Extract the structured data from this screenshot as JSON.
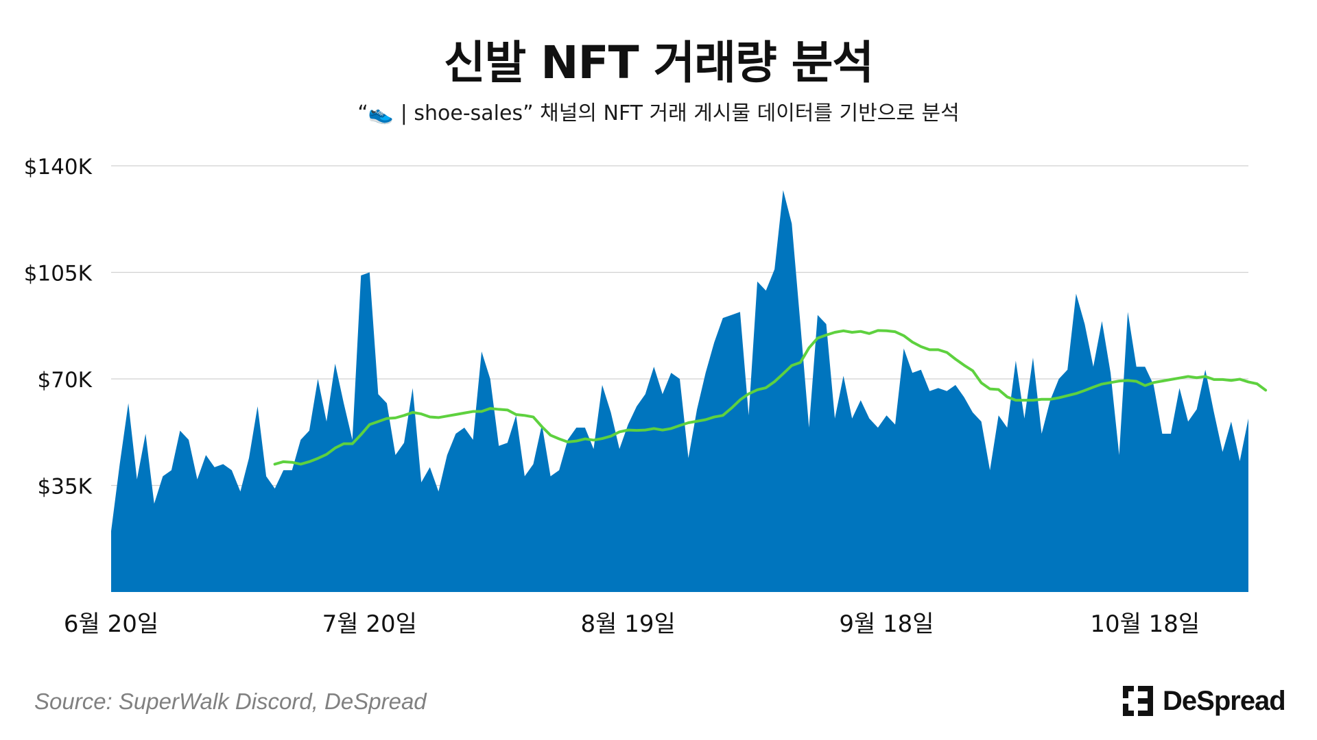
{
  "header": {
    "title": "신발 NFT 거래량 분석",
    "subtitle": "“👟 | shoe-sales” 채널의 NFT 거래 게시물 데이터를 기반으로 분석"
  },
  "footer": {
    "source": "Source: SuperWalk Discord, DeSpread",
    "brand": "DeSpread",
    "brand_icon": "despread-logo-icon"
  },
  "colors": {
    "area": "#0075BE",
    "moving_average": "#5ED13F",
    "gridline": "#D0D0D0"
  },
  "chart_data": {
    "type": "area",
    "title": "신발 NFT 거래량 분석",
    "subtitle": "“👟 | shoe-sales” 채널의 NFT 거래 게시물 데이터를 기반으로 분석",
    "x_start_date": "2022-06-20",
    "x_ticks": [
      {
        "day": 0,
        "label": "6월 20일"
      },
      {
        "day": 30,
        "label": "7월 20일"
      },
      {
        "day": 60,
        "label": "8월 19일"
      },
      {
        "day": 90,
        "label": "9월 18일"
      },
      {
        "day": 120,
        "label": "10월 18일"
      }
    ],
    "y_ticks": [
      {
        "value": 35000,
        "label": "$35K"
      },
      {
        "value": 70000,
        "label": "$70K"
      },
      {
        "value": 105000,
        "label": "$105K"
      },
      {
        "value": 140000,
        "label": "$140K"
      }
    ],
    "ylim": [
      0,
      140000
    ],
    "grid": true,
    "series": [
      {
        "type": "area",
        "values": [
          20000,
          42000,
          62000,
          37000,
          52000,
          29000,
          38000,
          40000,
          53000,
          50000,
          37000,
          45000,
          41000,
          42000,
          40000,
          33000,
          44000,
          61000,
          38000,
          34000,
          40000,
          40000,
          50000,
          53000,
          70000,
          56000,
          75000,
          62000,
          50000,
          104000,
          105000,
          65000,
          62000,
          45000,
          49000,
          67000,
          36000,
          41000,
          33000,
          45000,
          52000,
          54000,
          50000,
          79000,
          70000,
          48000,
          49000,
          58000,
          38000,
          42000,
          55000,
          38000,
          40000,
          50000,
          54000,
          54000,
          47000,
          68000,
          59000,
          47000,
          55000,
          61000,
          65000,
          74000,
          65000,
          72000,
          70000,
          44000,
          60000,
          72000,
          82000,
          90000,
          91000,
          92000,
          58000,
          102000,
          99000,
          106000,
          132000,
          121000,
          88000,
          54000,
          91000,
          88000,
          57000,
          71000,
          57000,
          63000,
          57000,
          54000,
          58000,
          55000,
          80000,
          72000,
          73000,
          66000,
          67000,
          66000,
          68000,
          64000,
          59000,
          56000,
          40000,
          58000,
          54000,
          76000,
          57000,
          77000,
          52000,
          63000,
          70000,
          73000,
          98000,
          88000,
          74000,
          89000,
          72000,
          45000,
          92000,
          74000,
          74000,
          68000,
          52000,
          52000,
          67000,
          56000,
          60000,
          73000,
          59000,
          46000,
          56000,
          43000,
          57000
        ]
      },
      {
        "type": "line",
        "start_day": 19,
        "values": [
          42000,
          42800,
          42600,
          42000,
          42800,
          43900,
          45200,
          47300,
          48700,
          48700,
          51700,
          55000,
          56000,
          57000,
          57200,
          58000,
          59000,
          58500,
          57500,
          57300,
          57800,
          58300,
          58800,
          59300,
          59300,
          60300,
          60000,
          59800,
          58300,
          58000,
          57500,
          54300,
          51500,
          50300,
          49300,
          49600,
          50300,
          49900,
          50400,
          51200,
          52600,
          53200,
          53100,
          53200,
          53700,
          53200,
          53700,
          54700,
          55600,
          56100,
          56600,
          57500,
          58000,
          60400,
          63100,
          65100,
          66400,
          67100,
          69100,
          71700,
          74400,
          75400,
          80200,
          83400,
          84400,
          85300,
          85800,
          85300,
          85600,
          84900,
          85900,
          85800,
          85500,
          84200,
          82100,
          80600,
          79600,
          79600,
          78700,
          76500,
          74500,
          72700,
          68700,
          66700,
          66500,
          64100,
          63000,
          63000,
          63000,
          63300,
          63300,
          63800,
          64500,
          65200,
          66200,
          67300,
          68300,
          68800,
          69300,
          69500,
          69200,
          67800,
          68800,
          69300,
          69800,
          70300,
          70800,
          70400,
          70800,
          69800,
          69800,
          69500,
          69900,
          69000,
          68400,
          66300
        ]
      }
    ]
  }
}
